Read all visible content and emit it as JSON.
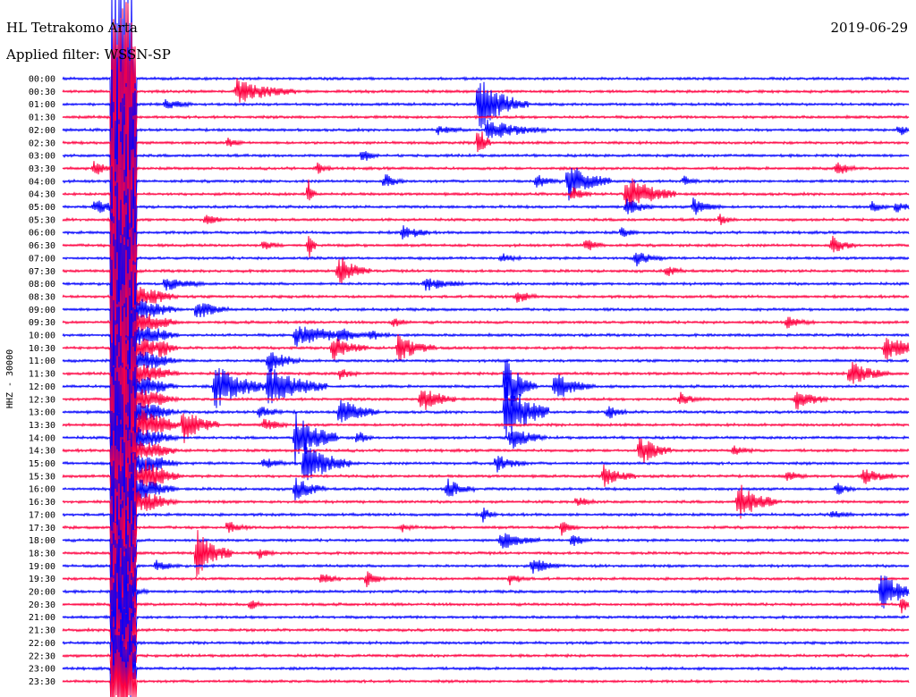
{
  "header": {
    "station": "HL Tetrakomo Arta",
    "date": "2019-06-29",
    "filter_label": "Applied filter:",
    "filter_value": "WSSN-SP"
  },
  "chart_data": {
    "type": "line",
    "title": "HL Tetrakomo Arta",
    "ylabel": "HHZ - 30000",
    "colors": [
      "#0000ff",
      "#ff0040"
    ],
    "grid": false,
    "time_labels": [
      "00:00",
      "00:30",
      "01:00",
      "01:30",
      "02:00",
      "02:30",
      "03:00",
      "03:30",
      "04:00",
      "04:30",
      "05:00",
      "05:30",
      "06:00",
      "06:30",
      "07:00",
      "07:30",
      "08:00",
      "08:30",
      "09:00",
      "09:30",
      "10:00",
      "10:30",
      "11:00",
      "11:30",
      "12:00",
      "12:30",
      "13:00",
      "13:30",
      "14:00",
      "14:30",
      "15:00",
      "15:30",
      "16:00",
      "16:30",
      "17:00",
      "17:30",
      "18:00",
      "18:30",
      "19:00",
      "19:30",
      "20:00",
      "20:30",
      "21:00",
      "21:30",
      "22:00",
      "22:30",
      "23:00",
      "23:30"
    ],
    "minutes_per_line": 30
  }
}
